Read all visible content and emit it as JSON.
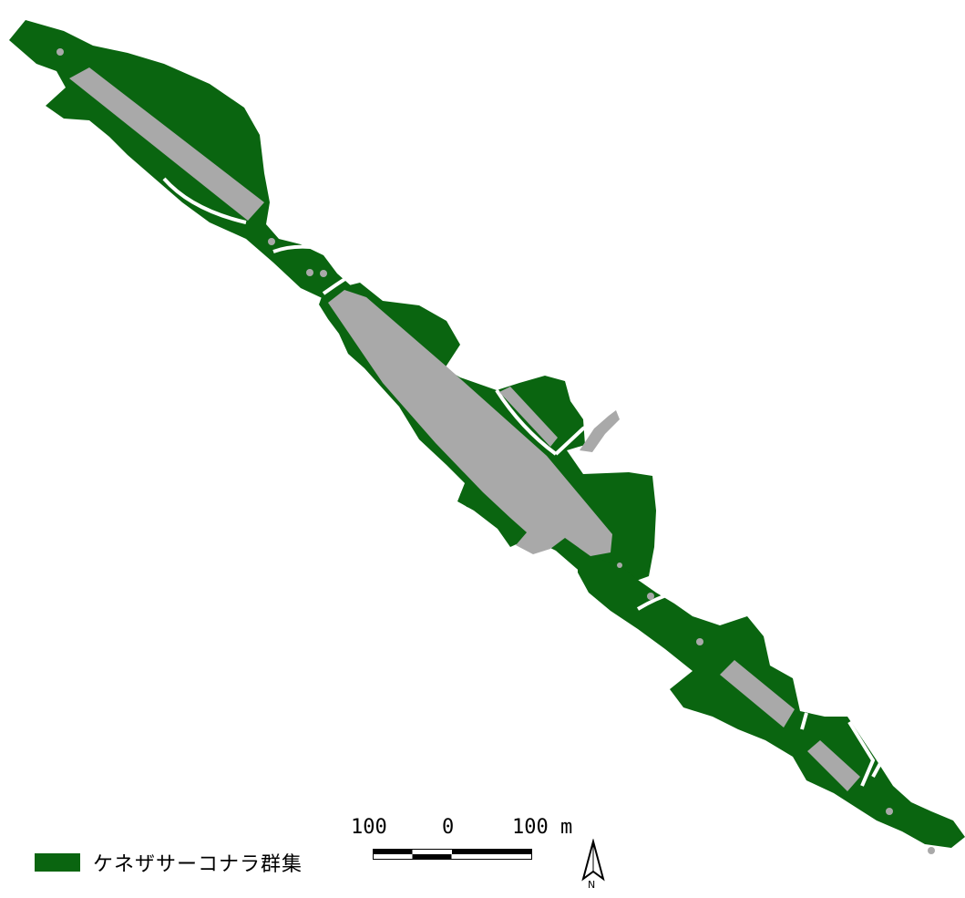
{
  "legend": {
    "label": "ケネザサーコナラ群集",
    "color": "#0a6510"
  },
  "colors": {
    "vegetation": "#0a6510",
    "developed": "#a9a9a9",
    "background": "#ffffff"
  },
  "scale_bar": {
    "left_label": "100",
    "center_label": "0",
    "right_label": "100 m"
  },
  "north_arrow": {
    "label": "N"
  }
}
